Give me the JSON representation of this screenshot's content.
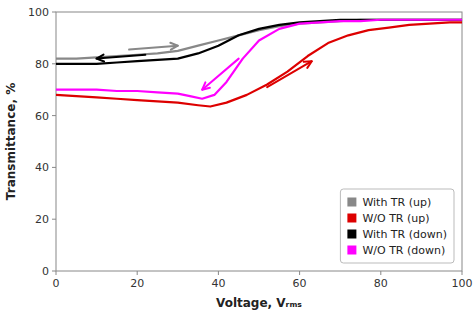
{
  "chart_data": {
    "type": "line",
    "xlabel": "Voltage, Vᵣₘₛ",
    "ylabel": "Transmittance, %",
    "xlim": [
      0,
      100
    ],
    "ylim": [
      0,
      100
    ],
    "xticks": [
      0,
      20,
      40,
      60,
      80,
      100
    ],
    "yticks": [
      0,
      20,
      40,
      60,
      80,
      100
    ],
    "grid": false,
    "legend": "lower right",
    "series": [
      {
        "name": "With TR (up)",
        "color": "#888888",
        "x": [
          0,
          5,
          10,
          15,
          20,
          25,
          30,
          35,
          40,
          45,
          50,
          55,
          60,
          65,
          70,
          75,
          80,
          85,
          90,
          95,
          100
        ],
        "values": [
          82,
          82,
          82.5,
          83,
          83.5,
          84,
          85,
          87,
          89,
          91,
          93,
          94.5,
          95.5,
          96,
          96.5,
          97,
          97,
          97,
          97,
          97,
          97
        ]
      },
      {
        "name": "W/O TR (up)",
        "color": "#dd0000",
        "x": [
          0,
          5,
          10,
          15,
          20,
          25,
          30,
          35,
          38,
          42,
          47,
          52,
          57,
          62,
          67,
          72,
          77,
          82,
          87,
          92,
          97,
          100
        ],
        "values": [
          68,
          67.5,
          67,
          66.5,
          66,
          65.5,
          65,
          64,
          63.5,
          65,
          68,
          72,
          77,
          83,
          88,
          91,
          93,
          94,
          95,
          95.5,
          96,
          96
        ]
      },
      {
        "name": "With TR (down)",
        "color": "#000000",
        "x": [
          0,
          5,
          10,
          15,
          20,
          25,
          30,
          35,
          40,
          45,
          50,
          55,
          60,
          65,
          70,
          75,
          80,
          85,
          90,
          95,
          100
        ],
        "values": [
          80,
          80,
          80,
          80.5,
          81,
          81.5,
          82,
          84,
          87,
          91,
          93.5,
          95,
          96,
          96.5,
          97,
          97,
          97,
          97,
          97,
          97,
          97
        ]
      },
      {
        "name": "W/O TR (down)",
        "color": "#ff00ff",
        "x": [
          0,
          5,
          10,
          15,
          20,
          25,
          30,
          33,
          36,
          39,
          42,
          46,
          50,
          55,
          60,
          65,
          70,
          75,
          80,
          85,
          90,
          95,
          100
        ],
        "values": [
          70,
          70,
          70,
          69.5,
          69.5,
          69,
          68.5,
          67.5,
          66.5,
          68,
          73,
          82,
          89,
          93.5,
          95.5,
          96,
          96.5,
          96.5,
          97,
          97,
          97,
          97,
          97
        ]
      }
    ],
    "annotations": [
      {
        "x1": 18,
        "y1": 85.5,
        "x2": 30,
        "y2": 87,
        "color": "#888888"
      },
      {
        "x1": 22,
        "y1": 83.5,
        "x2": 10,
        "y2": 82,
        "color": "#000000"
      },
      {
        "x1": 52,
        "y1": 71,
        "x2": 63,
        "y2": 81,
        "color": "#dd0000"
      },
      {
        "x1": 45,
        "y1": 82,
        "x2": 36,
        "y2": 70,
        "color": "#ff00ff"
      }
    ]
  }
}
